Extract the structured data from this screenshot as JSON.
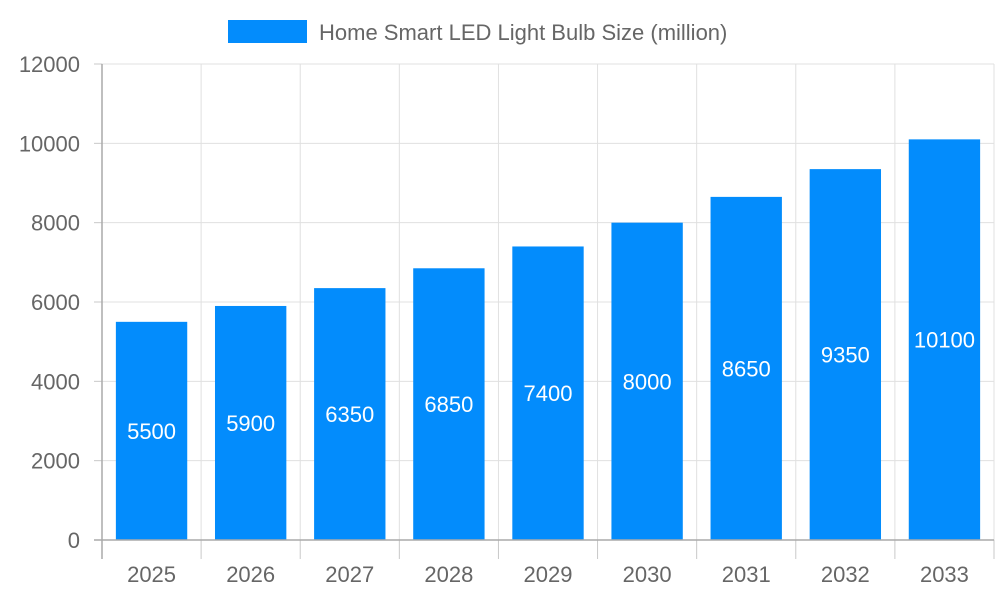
{
  "chart_data": {
    "type": "bar",
    "title": "",
    "legend": {
      "position": "top",
      "entries": [
        "Home Smart LED Light Bulb Size (million)"
      ]
    },
    "categories": [
      "2025",
      "2026",
      "2027",
      "2028",
      "2029",
      "2030",
      "2031",
      "2032",
      "2033"
    ],
    "series": [
      {
        "name": "Home Smart LED Light Bulb Size (million)",
        "values": [
          5500,
          5900,
          6350,
          6850,
          7400,
          8000,
          8650,
          9350,
          10100
        ],
        "color": "#038cfc"
      }
    ],
    "data_labels": true,
    "xlabel": "",
    "ylabel": "",
    "ylim": [
      0,
      12000
    ],
    "yticks": [
      0,
      2000,
      4000,
      6000,
      8000,
      10000,
      12000
    ],
    "grid": true
  }
}
